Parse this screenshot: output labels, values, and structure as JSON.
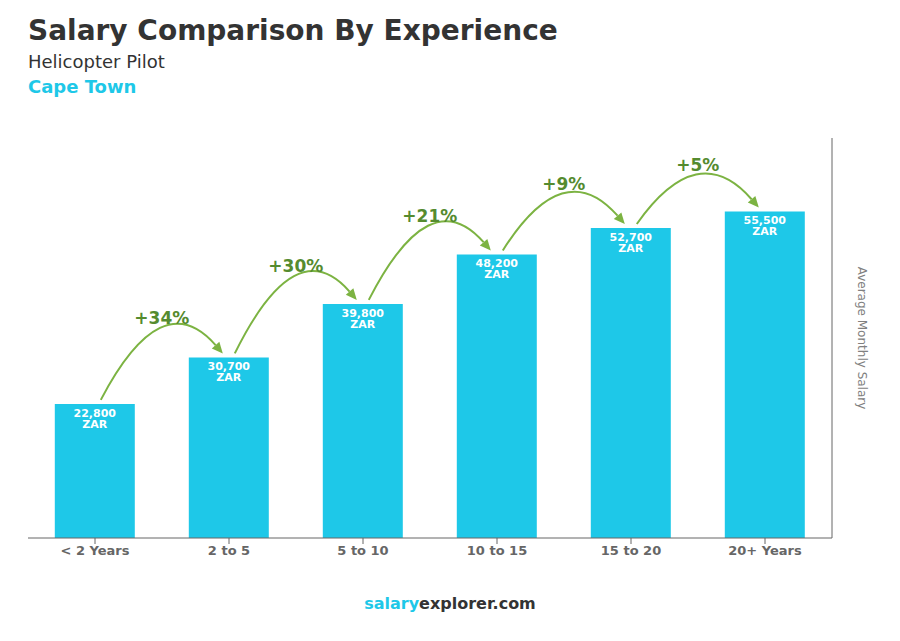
{
  "chart_data": {
    "type": "bar",
    "title": "Salary Comparison By Experience",
    "subtitle": [
      "Helicopter Pilot",
      "Cape Town"
    ],
    "categories": [
      "< 2 Years",
      "2 to 5",
      "5 to 10",
      "10 to 15",
      "15 to 20",
      "20+ Years"
    ],
    "values": [
      22800,
      30700,
      39800,
      48200,
      52700,
      55500
    ],
    "value_labels": [
      "22,800 ZAR",
      "30,700 ZAR",
      "39,800 ZAR",
      "48,200 ZAR",
      "52,700 ZAR",
      "55,500 ZAR"
    ],
    "data_labels": true,
    "color": "#1EC8E8",
    "ylabel": "Average Monthly Salary",
    "ylim": [
      0,
      68000
    ],
    "tick_labels": "x",
    "grid": false,
    "annotations": [
      {
        "text": "+34%",
        "from": "< 2 Years",
        "to": "2 to 5"
      },
      {
        "text": "+30%",
        "from": "2 to 5",
        "to": "5 to 10"
      },
      {
        "text": "+21%",
        "from": "5 to 10",
        "to": "10 to 15"
      },
      {
        "text": "+9%",
        "from": "10 to 15",
        "to": "15 to 20"
      },
      {
        "text": "+5%",
        "from": "15 to 20",
        "to": "20+ Years"
      }
    ],
    "footer": [
      "salary",
      "explorer.com"
    ]
  }
}
